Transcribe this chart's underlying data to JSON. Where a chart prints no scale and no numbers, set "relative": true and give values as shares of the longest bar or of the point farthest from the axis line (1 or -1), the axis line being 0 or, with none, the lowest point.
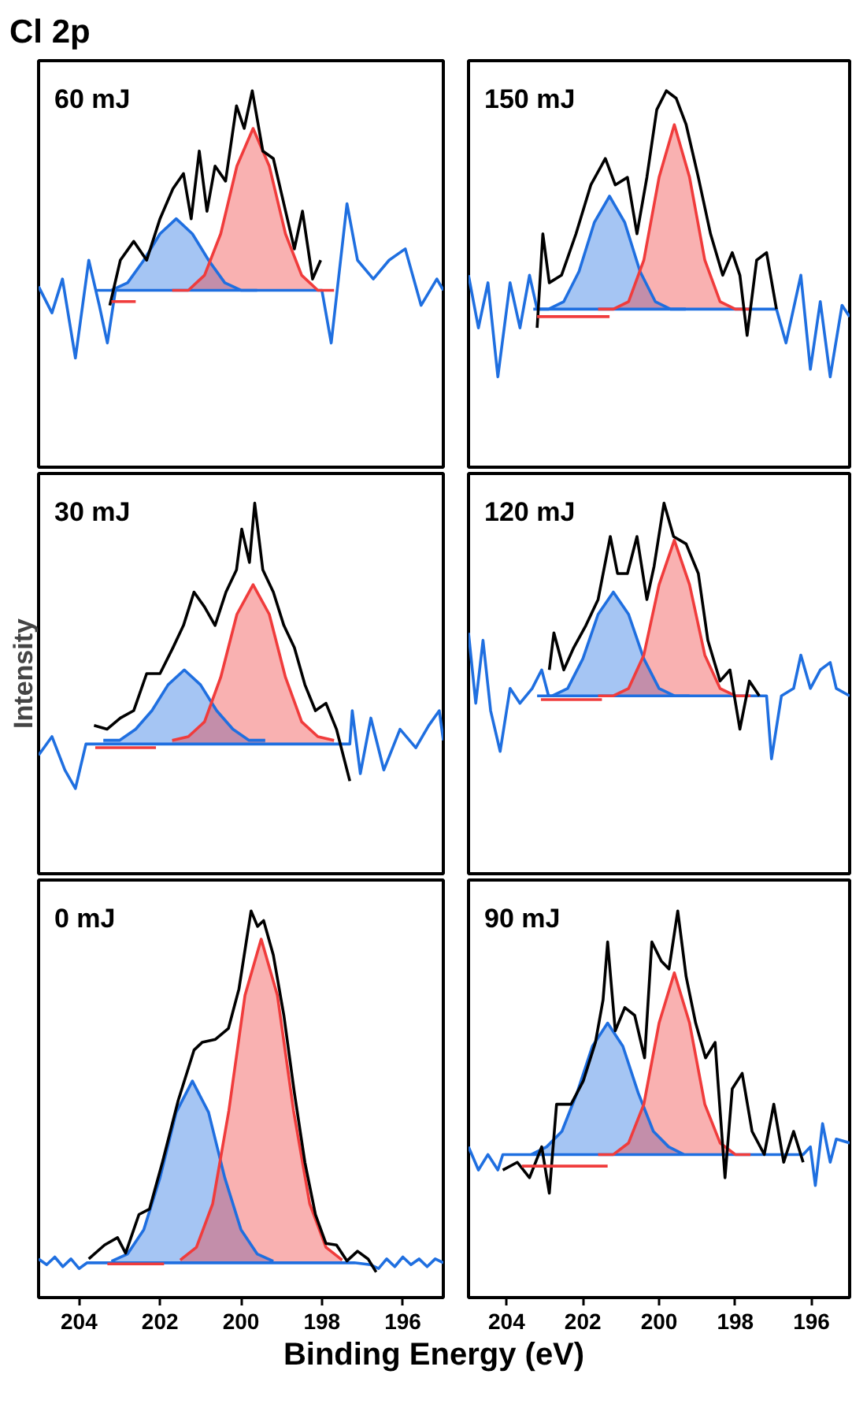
{
  "chart_data": [
    {
      "type": "line",
      "title": "Cl 2p",
      "annotations": [
        "60 mJ"
      ],
      "relative": true,
      "xlim": [
        205,
        195
      ],
      "xticks": [
        204,
        202,
        200,
        198,
        196
      ],
      "tick_labels": false,
      "series": [
        {
          "color": "#1f6fe0",
          "x": [
            205,
            204.67,
            204.41,
            204.09,
            203.76,
            203.5,
            203.3,
            203.1,
            198.0,
            197.77,
            197.38,
            197.12,
            196.73,
            196.34,
            195.94,
            195.55,
            195.16,
            195
          ],
          "values": [
            0.48,
            0.41,
            0.5,
            0.29,
            0.55,
            0.43,
            0.33,
            0.47,
            0.47,
            0.33,
            0.7,
            0.55,
            0.5,
            0.55,
            0.58,
            0.43,
            0.5,
            0.47
          ]
        },
        {
          "color": "#1f6fe0",
          "x": [
            203.6,
            203.2,
            202.8,
            202.4,
            202.0,
            201.6,
            201.2,
            200.8,
            200.4,
            200.0,
            199.6
          ],
          "values": [
            0.47,
            0.47,
            0.49,
            0.55,
            0.62,
            0.66,
            0.62,
            0.55,
            0.49,
            0.47,
            0.47
          ],
          "lower": [
            0.47,
            0.47,
            0.47,
            0.47,
            0.47,
            0.47,
            0.47,
            0.47,
            0.47,
            0.47,
            0.47
          ],
          "upper": [
            0.47,
            0.47,
            0.49,
            0.55,
            0.62,
            0.66,
            0.62,
            0.55,
            0.49,
            0.47,
            0.47
          ]
        },
        {
          "color": "#f03c3c",
          "x": [
            201.7,
            201.3,
            200.9,
            200.5,
            200.1,
            199.7,
            199.3,
            198.9,
            198.5,
            198.1,
            197.7
          ],
          "values": [
            0.47,
            0.47,
            0.51,
            0.62,
            0.8,
            0.9,
            0.8,
            0.62,
            0.51,
            0.47,
            0.47
          ],
          "lower": [
            0.47,
            0.47,
            0.47,
            0.47,
            0.47,
            0.47,
            0.47,
            0.47,
            0.47,
            0.47,
            0.47
          ],
          "upper": [
            0.47,
            0.47,
            0.51,
            0.62,
            0.8,
            0.9,
            0.8,
            0.62,
            0.51,
            0.47,
            0.47
          ]
        },
        {
          "color": "#000000",
          "x": [
            203.24,
            202.98,
            202.65,
            202.33,
            202.0,
            201.68,
            201.42,
            201.23,
            201.03,
            200.84,
            200.64,
            200.38,
            200.11,
            199.92,
            199.72,
            199.46,
            199.2,
            198.94,
            198.68,
            198.48,
            198.23,
            198.03
          ],
          "values": [
            0.43,
            0.55,
            0.6,
            0.55,
            0.66,
            0.74,
            0.78,
            0.66,
            0.84,
            0.68,
            0.8,
            0.76,
            0.96,
            0.9,
            1.0,
            0.84,
            0.82,
            0.7,
            0.58,
            0.68,
            0.5,
            0.55
          ]
        },
        {
          "color": "#f03c3c",
          "x": [
            203.2,
            202.6
          ],
          "values": [
            0.44,
            0.44
          ]
        }
      ]
    },
    {
      "type": "line",
      "annotations": [
        "150 mJ"
      ],
      "relative": true,
      "xlim": [
        205,
        195
      ],
      "xticks": [
        204,
        202,
        200,
        198,
        196
      ],
      "tick_labels": false,
      "series": [
        {
          "color": "#1f6fe0",
          "x": [
            205,
            204.74,
            204.49,
            204.23,
            203.91,
            203.65,
            203.4,
            203.2,
            196.92,
            196.67,
            196.28,
            196.03,
            195.77,
            195.51,
            195.2,
            195
          ],
          "values": [
            0.51,
            0.37,
            0.49,
            0.24,
            0.49,
            0.37,
            0.51,
            0.42,
            0.42,
            0.33,
            0.51,
            0.26,
            0.44,
            0.24,
            0.43,
            0.4
          ]
        },
        {
          "color": "#1f6fe0",
          "x": [
            203.3,
            202.9,
            202.5,
            202.1,
            201.7,
            201.3,
            200.9,
            200.5,
            200.1,
            199.7,
            199.3
          ],
          "values": [
            0.42,
            0.42,
            0.44,
            0.52,
            0.65,
            0.72,
            0.65,
            0.52,
            0.44,
            0.42,
            0.42
          ],
          "lower": [
            0.42,
            0.42,
            0.42,
            0.42,
            0.42,
            0.42,
            0.42,
            0.42,
            0.42,
            0.42,
            0.42
          ],
          "upper": [
            0.42,
            0.42,
            0.44,
            0.52,
            0.65,
            0.72,
            0.65,
            0.52,
            0.44,
            0.42,
            0.42
          ]
        },
        {
          "color": "#f03c3c",
          "x": [
            201.6,
            201.2,
            200.8,
            200.4,
            200.0,
            199.6,
            199.2,
            198.8,
            198.4,
            198.0,
            197.6
          ],
          "values": [
            0.42,
            0.42,
            0.44,
            0.55,
            0.77,
            0.91,
            0.77,
            0.55,
            0.44,
            0.42,
            0.42
          ],
          "lower": [
            0.42,
            0.42,
            0.42,
            0.42,
            0.42,
            0.42,
            0.42,
            0.42,
            0.42,
            0.42,
            0.42
          ],
          "upper": [
            0.42,
            0.42,
            0.44,
            0.55,
            0.77,
            0.91,
            0.77,
            0.55,
            0.44,
            0.42,
            0.42
          ]
        },
        {
          "color": "#000000",
          "x": [
            203.2,
            203.05,
            202.88,
            202.56,
            202.18,
            201.79,
            201.41,
            201.15,
            200.83,
            200.58,
            200.32,
            200.06,
            199.81,
            199.55,
            199.29,
            198.97,
            198.65,
            198.33,
            198.08,
            197.88,
            197.69,
            197.44,
            197.18,
            196.92
          ],
          "values": [
            0.37,
            0.62,
            0.49,
            0.51,
            0.62,
            0.75,
            0.82,
            0.75,
            0.77,
            0.62,
            0.77,
            0.95,
            1.0,
            0.98,
            0.91,
            0.77,
            0.62,
            0.51,
            0.57,
            0.51,
            0.35,
            0.55,
            0.57,
            0.42
          ]
        },
        {
          "color": "#f03c3c",
          "x": [
            203.2,
            201.3
          ],
          "values": [
            0.4,
            0.4
          ]
        }
      ]
    },
    {
      "type": "line",
      "ylabel": "Intensity",
      "annotations": [
        "30 mJ"
      ],
      "relative": true,
      "xlim": [
        205,
        195
      ],
      "xticks": [
        204,
        202,
        200,
        198,
        196
      ],
      "tick_labels": false,
      "series": [
        {
          "color": "#1f6fe0",
          "x": [
            205,
            204.67,
            204.35,
            204.09,
            203.83,
            203.63,
            197.31,
            197.25,
            197.05,
            196.79,
            196.47,
            196.07,
            195.68,
            195.36,
            195.1,
            195
          ],
          "values": [
            0.32,
            0.37,
            0.28,
            0.23,
            0.35,
            0.35,
            0.35,
            0.44,
            0.27,
            0.42,
            0.28,
            0.39,
            0.34,
            0.4,
            0.44,
            0.36
          ]
        },
        {
          "color": "#1f6fe0",
          "x": [
            203.4,
            203.0,
            202.6,
            202.2,
            201.8,
            201.4,
            201.0,
            200.6,
            200.2,
            199.8,
            199.4
          ],
          "values": [
            0.36,
            0.36,
            0.39,
            0.44,
            0.51,
            0.55,
            0.51,
            0.44,
            0.39,
            0.36,
            0.36
          ],
          "lower": [
            0.35,
            0.35,
            0.35,
            0.35,
            0.35,
            0.35,
            0.35,
            0.35,
            0.35,
            0.35,
            0.35
          ],
          "upper": [
            0.36,
            0.36,
            0.39,
            0.44,
            0.51,
            0.55,
            0.51,
            0.44,
            0.39,
            0.36,
            0.36
          ]
        },
        {
          "color": "#f03c3c",
          "x": [
            201.7,
            201.3,
            200.9,
            200.5,
            200.1,
            199.7,
            199.3,
            198.9,
            198.5,
            198.1,
            197.7
          ],
          "values": [
            0.36,
            0.37,
            0.41,
            0.53,
            0.7,
            0.78,
            0.7,
            0.53,
            0.41,
            0.37,
            0.36
          ],
          "lower": [
            0.35,
            0.35,
            0.35,
            0.35,
            0.35,
            0.35,
            0.35,
            0.35,
            0.35,
            0.35,
            0.35
          ],
          "upper": [
            0.36,
            0.37,
            0.41,
            0.53,
            0.7,
            0.78,
            0.7,
            0.53,
            0.41,
            0.37,
            0.36
          ]
        },
        {
          "color": "#000000",
          "x": [
            203.63,
            203.31,
            202.98,
            202.65,
            202.33,
            202.0,
            201.68,
            201.42,
            201.16,
            200.9,
            200.64,
            200.37,
            200.11,
            199.98,
            199.79,
            199.66,
            199.46,
            199.2,
            198.94,
            198.68,
            198.42,
            198.16,
            197.9,
            197.64,
            197.31
          ],
          "values": [
            0.4,
            0.39,
            0.42,
            0.44,
            0.54,
            0.54,
            0.61,
            0.67,
            0.76,
            0.72,
            0.67,
            0.76,
            0.82,
            0.93,
            0.84,
            1.0,
            0.82,
            0.76,
            0.67,
            0.61,
            0.51,
            0.44,
            0.46,
            0.39,
            0.25
          ]
        },
        {
          "color": "#f03c3c",
          "x": [
            203.6,
            202.1
          ],
          "values": [
            0.34,
            0.34
          ]
        }
      ]
    },
    {
      "type": "line",
      "annotations": [
        "120 mJ"
      ],
      "relative": true,
      "xlim": [
        205,
        195
      ],
      "xticks": [
        204,
        202,
        200,
        198,
        196
      ],
      "tick_labels": false,
      "series": [
        {
          "color": "#1f6fe0",
          "x": [
            205,
            204.81,
            204.62,
            204.42,
            204.17,
            203.91,
            203.65,
            203.33,
            203.08,
            202.9,
            197.37,
            197.18,
            197.05,
            196.79,
            196.47,
            196.28,
            196.03,
            195.77,
            195.51,
            195.35,
            195
          ],
          "values": [
            0.65,
            0.46,
            0.63,
            0.44,
            0.33,
            0.5,
            0.46,
            0.5,
            0.55,
            0.48,
            0.48,
            0.48,
            0.31,
            0.48,
            0.5,
            0.59,
            0.5,
            0.55,
            0.57,
            0.5,
            0.48
          ]
        },
        {
          "color": "#1f6fe0",
          "x": [
            203.2,
            202.8,
            202.4,
            202.0,
            201.6,
            201.2,
            200.8,
            200.4,
            200.0,
            199.6,
            199.2
          ],
          "values": [
            0.48,
            0.48,
            0.5,
            0.58,
            0.7,
            0.76,
            0.7,
            0.58,
            0.5,
            0.48,
            0.48
          ],
          "lower": [
            0.48,
            0.48,
            0.48,
            0.48,
            0.48,
            0.48,
            0.48,
            0.48,
            0.48,
            0.48,
            0.48
          ],
          "upper": [
            0.48,
            0.48,
            0.5,
            0.58,
            0.7,
            0.76,
            0.7,
            0.58,
            0.5,
            0.48,
            0.48
          ]
        },
        {
          "color": "#f03c3c",
          "x": [
            201.6,
            201.2,
            200.8,
            200.4,
            200.0,
            199.6,
            199.2,
            198.8,
            198.4,
            198.0,
            197.6
          ],
          "values": [
            0.48,
            0.48,
            0.5,
            0.59,
            0.78,
            0.9,
            0.78,
            0.59,
            0.5,
            0.48,
            0.48
          ],
          "lower": [
            0.48,
            0.48,
            0.48,
            0.48,
            0.48,
            0.48,
            0.48,
            0.48,
            0.48,
            0.48,
            0.48
          ],
          "upper": [
            0.48,
            0.48,
            0.5,
            0.59,
            0.78,
            0.9,
            0.78,
            0.59,
            0.5,
            0.48,
            0.48
          ]
        },
        {
          "color": "#000000",
          "x": [
            202.88,
            202.76,
            202.5,
            202.24,
            201.92,
            201.6,
            201.28,
            201.09,
            200.83,
            200.58,
            200.32,
            200.13,
            199.87,
            199.62,
            199.29,
            198.97,
            198.72,
            198.4,
            198.14,
            197.88,
            197.63,
            197.37
          ],
          "values": [
            0.55,
            0.65,
            0.55,
            0.61,
            0.67,
            0.74,
            0.91,
            0.81,
            0.81,
            0.91,
            0.74,
            0.83,
            1.0,
            0.91,
            0.89,
            0.81,
            0.63,
            0.52,
            0.55,
            0.39,
            0.52,
            0.48
          ]
        },
        {
          "color": "#f03c3c",
          "x": [
            203.1,
            201.5
          ],
          "values": [
            0.47,
            0.47
          ]
        }
      ]
    },
    {
      "type": "line",
      "annotations": [
        "0 mJ"
      ],
      "relative": true,
      "xlim": [
        205,
        195
      ],
      "xticks": [
        204,
        202,
        200,
        198,
        196
      ],
      "tick_labels": "x",
      "xlabel": "Binding Energy (eV)",
      "series": [
        {
          "color": "#1f6fe0",
          "x": [
            205,
            204.8,
            204.6,
            204.4,
            204.2,
            204.0,
            203.8,
            197.2,
            196.8,
            196.6,
            196.4,
            196.2,
            196.0,
            195.8,
            195.6,
            195.4,
            195.2,
            195
          ],
          "values": [
            0.1,
            0.085,
            0.105,
            0.08,
            0.1,
            0.075,
            0.09,
            0.09,
            0.085,
            0.075,
            0.1,
            0.08,
            0.105,
            0.085,
            0.1,
            0.08,
            0.1,
            0.09
          ]
        },
        {
          "color": "#1f6fe0",
          "x": [
            203.2,
            202.8,
            202.4,
            202.0,
            201.6,
            201.2,
            200.8,
            200.4,
            200.0,
            199.6,
            199.2
          ],
          "values": [
            0.094,
            0.113,
            0.176,
            0.31,
            0.479,
            0.56,
            0.479,
            0.31,
            0.176,
            0.113,
            0.094
          ],
          "lower": [
            0.09,
            0.09,
            0.09,
            0.09,
            0.09,
            0.09,
            0.09,
            0.09,
            0.09,
            0.09,
            0.09
          ],
          "upper": [
            0.094,
            0.113,
            0.176,
            0.31,
            0.479,
            0.56,
            0.479,
            0.31,
            0.176,
            0.113,
            0.094
          ]
        },
        {
          "color": "#f03c3c",
          "x": [
            201.5,
            201.1,
            200.7,
            200.3,
            199.9,
            199.5,
            199.1,
            198.7,
            198.3,
            197.9,
            197.5
          ],
          "values": [
            0.097,
            0.13,
            0.242,
            0.483,
            0.782,
            0.927,
            0.782,
            0.483,
            0.242,
            0.13,
            0.097
          ],
          "lower": [
            0.09,
            0.09,
            0.09,
            0.09,
            0.09,
            0.09,
            0.09,
            0.09,
            0.09,
            0.09,
            0.09
          ],
          "upper": [
            0.097,
            0.13,
            0.242,
            0.483,
            0.782,
            0.927,
            0.782,
            0.483,
            0.242,
            0.13,
            0.097
          ]
        },
        {
          "color": "#000000",
          "x": [
            203.76,
            203.37,
            203.05,
            202.85,
            202.52,
            202.26,
            201.94,
            201.55,
            201.16,
            200.96,
            200.63,
            200.31,
            200.05,
            199.85,
            199.75,
            199.59,
            199.44,
            199.2,
            198.94,
            198.68,
            198.42,
            198.16,
            197.9,
            197.64,
            197.38,
            197.12,
            196.86,
            196.66
          ],
          "values": [
            0.1,
            0.136,
            0.155,
            0.115,
            0.215,
            0.229,
            0.35,
            0.51,
            0.64,
            0.66,
            0.668,
            0.696,
            0.798,
            0.933,
            1.0,
            0.96,
            0.975,
            0.886,
            0.73,
            0.53,
            0.35,
            0.215,
            0.14,
            0.136,
            0.095,
            0.12,
            0.1,
            0.066
          ]
        },
        {
          "color": "#f03c3c",
          "x": [
            203.3,
            201.9
          ],
          "values": [
            0.087,
            0.087
          ]
        }
      ]
    },
    {
      "type": "line",
      "annotations": [
        "90 mJ"
      ],
      "relative": true,
      "xlim": [
        205,
        195
      ],
      "xticks": [
        204,
        202,
        200,
        198,
        196
      ],
      "tick_labels": "x",
      "series": [
        {
          "color": "#1f6fe0",
          "x": [
            205,
            204.74,
            204.49,
            204.23,
            204.1,
            196.22,
            196.03,
            195.9,
            195.71,
            195.51,
            195.35,
            195
          ],
          "values": [
            0.39,
            0.33,
            0.37,
            0.33,
            0.37,
            0.37,
            0.39,
            0.29,
            0.45,
            0.35,
            0.41,
            0.4
          ]
        },
        {
          "color": "#1f6fe0",
          "x": [
            203.35,
            202.95,
            202.55,
            202.15,
            201.75,
            201.35,
            200.95,
            200.55,
            200.15,
            199.75,
            199.35
          ],
          "values": [
            0.37,
            0.39,
            0.43,
            0.53,
            0.65,
            0.71,
            0.65,
            0.53,
            0.43,
            0.39,
            0.37
          ],
          "lower": [
            0.37,
            0.37,
            0.37,
            0.37,
            0.37,
            0.37,
            0.37,
            0.37,
            0.37,
            0.37,
            0.37
          ],
          "upper": [
            0.37,
            0.39,
            0.43,
            0.53,
            0.65,
            0.71,
            0.65,
            0.53,
            0.43,
            0.39,
            0.37
          ]
        },
        {
          "color": "#f03c3c",
          "x": [
            201.6,
            201.2,
            200.8,
            200.4,
            200.0,
            199.6,
            199.2,
            198.8,
            198.4,
            198.0,
            197.6
          ],
          "values": [
            0.37,
            0.37,
            0.4,
            0.5,
            0.71,
            0.84,
            0.71,
            0.5,
            0.4,
            0.37,
            0.37
          ],
          "lower": [
            0.37,
            0.37,
            0.37,
            0.37,
            0.37,
            0.37,
            0.37,
            0.37,
            0.37,
            0.37,
            0.37
          ],
          "upper": [
            0.37,
            0.37,
            0.4,
            0.5,
            0.71,
            0.84,
            0.71,
            0.5,
            0.4,
            0.37,
            0.37
          ]
        },
        {
          "color": "#000000",
          "x": [
            204.1,
            203.72,
            203.4,
            203.08,
            202.88,
            202.69,
            202.31,
            201.99,
            201.67,
            201.47,
            201.35,
            201.15,
            200.9,
            200.64,
            200.38,
            200.19,
            199.94,
            199.74,
            199.51,
            199.29,
            199.04,
            198.78,
            198.53,
            198.27,
            198.08,
            197.82,
            197.56,
            197.24,
            196.99,
            196.73,
            196.47,
            196.22
          ],
          "values": [
            0.33,
            0.35,
            0.31,
            0.39,
            0.27,
            0.5,
            0.5,
            0.56,
            0.66,
            0.77,
            0.92,
            0.69,
            0.75,
            0.73,
            0.62,
            0.92,
            0.87,
            0.85,
            1.0,
            0.83,
            0.71,
            0.62,
            0.66,
            0.31,
            0.54,
            0.58,
            0.43,
            0.37,
            0.5,
            0.35,
            0.43,
            0.35
          ]
        },
        {
          "color": "#f03c3c",
          "x": [
            203.6,
            201.35
          ],
          "values": [
            0.34,
            0.34
          ]
        }
      ]
    }
  ]
}
